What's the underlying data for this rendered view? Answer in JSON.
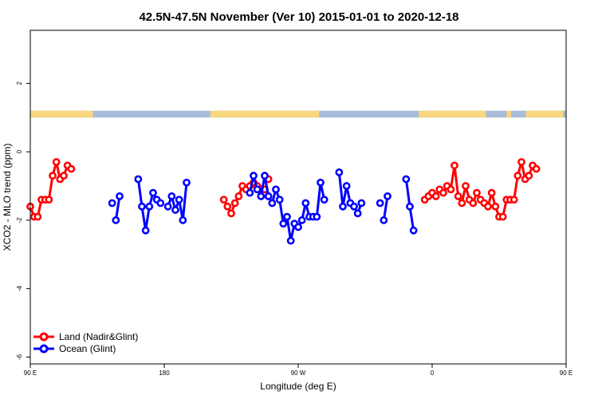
{
  "chart_data": {
    "type": "line",
    "title": "42.5N-47.5N November (Ver 10)   2015-01-01 to 2020-12-18",
    "xlabel": "Longitude (deg E)",
    "ylabel": "XCO2 - MLO trend (ppm)",
    "xlim": [
      90,
      450
    ],
    "ylim": [
      -6.2,
      3.55
    ],
    "x_ticks": [
      {
        "value": 90,
        "label": "90 E"
      },
      {
        "value": 180,
        "label": "180"
      },
      {
        "value": 270,
        "label": "90 W"
      },
      {
        "value": 360,
        "label": "0"
      },
      {
        "value": 450,
        "label": "90 E"
      },
      {
        "value": 540,
        "label": "180"
      }
    ],
    "y_ticks": [
      {
        "value": 2,
        "label": "2"
      },
      {
        "value": 0,
        "label": "0"
      },
      {
        "value": -2,
        "label": "-2"
      },
      {
        "value": -4,
        "label": "-4"
      },
      {
        "value": -6,
        "label": "-6"
      }
    ],
    "legend_position": "bottom-left",
    "surface_band": {
      "y_range": [
        1.0,
        1.2
      ],
      "land_color": "#f9d77e",
      "ocean_color": "#a9bcd9",
      "land_segments": [
        [
          90,
          132
        ],
        [
          211,
          284
        ],
        [
          351,
          396
        ],
        [
          410,
          413
        ],
        [
          423,
          448
        ],
        [
          456,
          472
        ],
        [
          490,
          502
        ],
        [
          560,
          570
        ]
      ]
    },
    "series": [
      {
        "name": "Land (Nadir&Glint)",
        "color": "#ff0000",
        "segments": [
          [
            [
              90.0,
              -1.6
            ],
            [
              92.5,
              -1.9
            ],
            [
              95.0,
              -1.9
            ],
            [
              97.5,
              -1.4
            ],
            [
              100.0,
              -1.4
            ],
            [
              102.5,
              -1.4
            ],
            [
              105.0,
              -0.7
            ],
            [
              107.5,
              -0.3
            ],
            [
              110.0,
              -0.8
            ],
            [
              112.5,
              -0.7
            ],
            [
              115.0,
              -0.4
            ],
            [
              117.5,
              -0.5
            ]
          ],
          [
            [
              220.0,
              -1.4
            ],
            [
              222.5,
              -1.6
            ],
            [
              225.0,
              -1.8
            ],
            [
              227.5,
              -1.5
            ],
            [
              230.0,
              -1.3
            ],
            [
              232.5,
              -1.0
            ],
            [
              235.0,
              -1.1
            ],
            [
              237.5,
              -1.0
            ],
            [
              240.0,
              -0.9
            ],
            [
              242.5,
              -1.0
            ],
            [
              245.0,
              -1.1
            ],
            [
              247.5,
              -1.1
            ]
          ],
          [
            [
              250.0,
              -0.8
            ]
          ],
          [
            [
              355.0,
              -1.4
            ],
            [
              357.5,
              -1.3
            ],
            [
              360.0,
              -1.2
            ],
            [
              362.5,
              -1.3
            ],
            [
              365.0,
              -1.1
            ],
            [
              367.5,
              -1.2
            ],
            [
              370.0,
              -1.0
            ],
            [
              372.5,
              -1.1
            ],
            [
              375.0,
              -0.4
            ],
            [
              377.5,
              -1.3
            ],
            [
              380.0,
              -1.5
            ],
            [
              382.5,
              -1.0
            ],
            [
              385.0,
              -1.4
            ],
            [
              387.5,
              -1.5
            ],
            [
              390.0,
              -1.2
            ],
            [
              392.5,
              -1.4
            ],
            [
              395.0,
              -1.5
            ],
            [
              397.5,
              -1.6
            ],
            [
              400.0,
              -1.2
            ],
            [
              402.5,
              -1.6
            ],
            [
              405.0,
              -1.9
            ],
            [
              407.5,
              -1.9
            ],
            [
              410.0,
              -1.4
            ],
            [
              412.5,
              -1.4
            ],
            [
              415.0,
              -1.4
            ],
            [
              417.5,
              -0.7
            ],
            [
              420.0,
              -0.3
            ],
            [
              422.5,
              -0.8
            ],
            [
              425.0,
              -0.7
            ],
            [
              427.5,
              -0.4
            ],
            [
              430.0,
              -0.5
            ]
          ]
        ]
      },
      {
        "name": "Ocean (Glint)",
        "color": "#0000ff",
        "segments": [
          [
            [
              145.0,
              -1.5
            ]
          ],
          [
            [
              147.5,
              -2.0
            ],
            [
              150.0,
              -1.3
            ]
          ],
          [
            [
              162.5,
              -0.8
            ],
            [
              165.0,
              -1.6
            ],
            [
              167.5,
              -2.3
            ],
            [
              170.0,
              -1.6
            ],
            [
              172.5,
              -1.2
            ],
            [
              175.0,
              -1.4
            ],
            [
              177.5,
              -1.5
            ]
          ],
          [
            [
              182.5,
              -1.6
            ],
            [
              185.0,
              -1.3
            ],
            [
              187.5,
              -1.7
            ],
            [
              190.0,
              -1.4
            ],
            [
              192.5,
              -2.0
            ],
            [
              195.0,
              -0.9
            ]
          ],
          [
            [
              237.5,
              -1.2
            ],
            [
              240.0,
              -0.7
            ],
            [
              242.5,
              -1.1
            ],
            [
              245.0,
              -1.3
            ],
            [
              247.5,
              -0.7
            ],
            [
              250.0,
              -1.3
            ],
            [
              252.5,
              -1.5
            ],
            [
              255.0,
              -1.1
            ],
            [
              257.5,
              -1.4
            ],
            [
              260.0,
              -2.1
            ],
            [
              262.5,
              -1.9
            ],
            [
              265.0,
              -2.6
            ],
            [
              267.5,
              -2.1
            ],
            [
              270.0,
              -2.2
            ],
            [
              272.5,
              -2.0
            ],
            [
              275.0,
              -1.5
            ],
            [
              277.5,
              -1.9
            ],
            [
              280.0,
              -1.9
            ],
            [
              282.5,
              -1.9
            ],
            [
              285.0,
              -0.9
            ],
            [
              287.5,
              -1.4
            ]
          ],
          [
            [
              297.5,
              -0.6
            ],
            [
              300.0,
              -1.6
            ],
            [
              302.5,
              -1.0
            ],
            [
              305.0,
              -1.5
            ],
            [
              307.5,
              -1.6
            ],
            [
              310.0,
              -1.8
            ],
            [
              312.5,
              -1.5
            ]
          ],
          [
            [
              325.0,
              -1.5
            ]
          ],
          [
            [
              327.5,
              -2.0
            ],
            [
              330.0,
              -1.3
            ]
          ],
          [
            [
              342.5,
              -0.8
            ],
            [
              345.0,
              -1.6
            ],
            [
              347.5,
              -2.3
            ]
          ]
        ]
      }
    ]
  }
}
